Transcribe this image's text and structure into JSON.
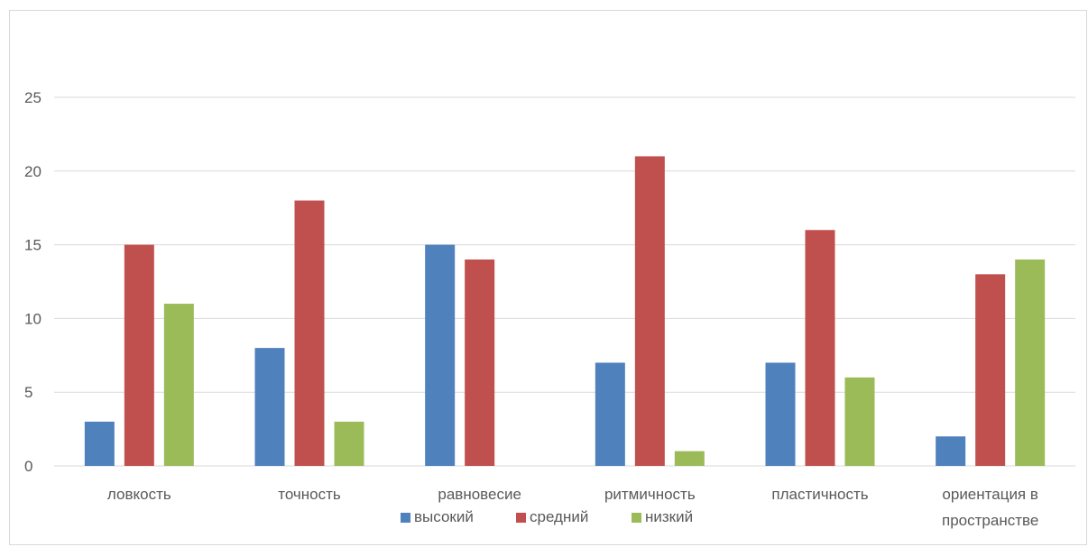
{
  "chart_data": {
    "type": "bar",
    "categories": [
      "ловкость",
      "точность",
      "равновесие",
      "ритмичность",
      "пластичность",
      "ориентация в пространстве"
    ],
    "category_lines": [
      [
        "ловкость"
      ],
      [
        "точность"
      ],
      [
        "равновесие"
      ],
      [
        "ритмичность"
      ],
      [
        "пластичность"
      ],
      [
        "ориентация в",
        "пространстве"
      ]
    ],
    "series": [
      {
        "name": "высокий",
        "color": "#4f81bd",
        "values": [
          3,
          8,
          15,
          7,
          7,
          2
        ]
      },
      {
        "name": "средний",
        "color": "#c0504d",
        "values": [
          15,
          18,
          14,
          21,
          16,
          13
        ]
      },
      {
        "name": "низкий",
        "color": "#9bbb59",
        "values": [
          11,
          3,
          0,
          1,
          6,
          14
        ]
      }
    ],
    "ylim": [
      0,
      25
    ],
    "yticks": [
      0,
      5,
      10,
      15,
      20,
      25
    ],
    "grid": true,
    "legend_position": "bottom",
    "gridline_color": "#d9d9d9",
    "axis_color": "#d9d9d9"
  }
}
